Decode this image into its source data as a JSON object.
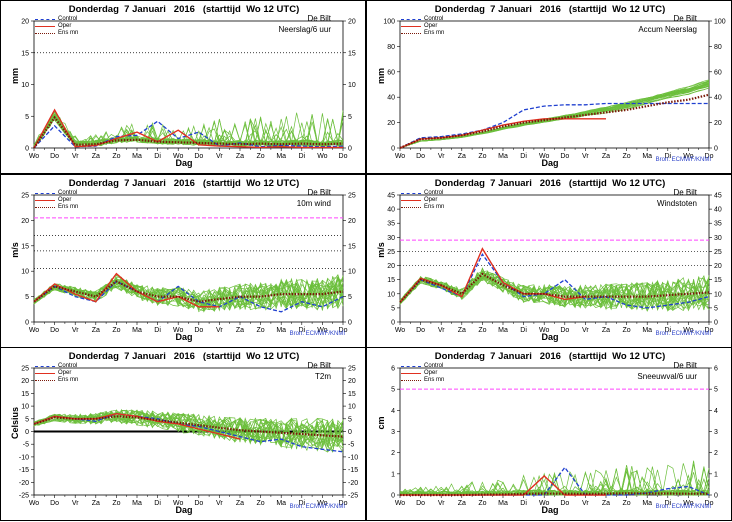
{
  "page": {
    "title": "Donderdag  7 Januari   2016   (starttijd  Wo 12 UTC)",
    "location": "De Bilt",
    "xlabel": "Dag",
    "source": "Bron:  ECMWF/KNMI",
    "days": [
      "Wo",
      "Do",
      "Vr",
      "Za",
      "Zo",
      "Ma",
      "Di",
      "Wo",
      "Do",
      "Vr",
      "Za",
      "Zo",
      "Ma",
      "Di",
      "Wo",
      "Do"
    ]
  },
  "legend": {
    "control": "Control",
    "oper": "Oper",
    "ensmn": "Ens mn"
  },
  "colors": {
    "control": "#2040d0",
    "oper": "#e03020",
    "ensmn": "#7a1a0a",
    "members": "#6cbf3c",
    "threshold": "#ff44ff",
    "zero": "#000000"
  },
  "chart_data": [
    {
      "type": "line",
      "var_label": "Neerslag/6 uur",
      "ylabel": "mm",
      "ylim": [
        0,
        20
      ],
      "yticks": [
        0,
        5,
        10,
        15,
        20
      ],
      "hlines": [
        {
          "y": 15,
          "style": "dotted"
        }
      ],
      "series": [
        {
          "name": "Control",
          "values": [
            0,
            3.5,
            0.2,
            0.3,
            1.8,
            2.0,
            4.2,
            1.5,
            2.5,
            0.3,
            0.8,
            0.2,
            0.4,
            0.3,
            0.2,
            0.3
          ]
        },
        {
          "name": "Oper",
          "values": [
            0,
            6.0,
            0.2,
            0.4,
            1.5,
            2.5,
            1.0,
            2.8,
            0.5,
            0.3,
            0.2,
            0.1,
            0.2,
            0.1,
            0.1,
            0.1
          ]
        },
        {
          "name": "Ens mn",
          "values": [
            0,
            4.8,
            0.5,
            0.6,
            1.2,
            1.3,
            1.0,
            0.9,
            0.8,
            0.7,
            0.6,
            0.7,
            0.6,
            0.7,
            0.6,
            0.7
          ]
        }
      ]
    },
    {
      "type": "line",
      "var_label": "Accum Neerslag",
      "ylabel": "mm",
      "ylim": [
        0,
        100
      ],
      "yticks": [
        0,
        20,
        40,
        60,
        80,
        100
      ],
      "hlines": [],
      "series": [
        {
          "name": "Control",
          "values": [
            0,
            8,
            9,
            11,
            14,
            20,
            30,
            33,
            34,
            34,
            35,
            35,
            35,
            35,
            35,
            35
          ]
        },
        {
          "name": "Oper",
          "values": [
            0,
            7,
            8,
            10,
            14,
            18,
            21,
            23,
            23,
            23,
            23,
            null,
            null,
            null,
            null,
            null
          ]
        },
        {
          "name": "Ens mn",
          "values": [
            0,
            7,
            8,
            10,
            13,
            17,
            20,
            22,
            24,
            26,
            28,
            30,
            33,
            36,
            38,
            42
          ]
        }
      ]
    },
    {
      "type": "line",
      "var_label": "10m wind",
      "ylabel": "m/s",
      "ylim": [
        0,
        25
      ],
      "yticks": [
        0,
        5,
        10,
        15,
        20,
        25
      ],
      "hlines": [
        {
          "y": 20.5,
          "style": "dashed-magenta"
        },
        {
          "y": 17,
          "style": "dotted"
        },
        {
          "y": 14,
          "style": "dotted"
        },
        {
          "y": 10.5,
          "style": "dotted"
        }
      ],
      "series": [
        {
          "name": "Control",
          "values": [
            4,
            7,
            5,
            4,
            8,
            6,
            4,
            7,
            4,
            3,
            5,
            3,
            2,
            4,
            3,
            5
          ]
        },
        {
          "name": "Oper",
          "values": [
            4,
            7.5,
            5.5,
            4,
            9.5,
            6,
            4,
            5,
            3,
            3,
            null,
            null,
            null,
            null,
            null,
            null
          ]
        },
        {
          "name": "Ens mn",
          "values": [
            4,
            7,
            6,
            5,
            8,
            6,
            5,
            5,
            4,
            4.5,
            5,
            5,
            5.5,
            5.5,
            5.5,
            6
          ]
        }
      ]
    },
    {
      "type": "line",
      "var_label": "Windstoten",
      "ylabel": "m/s",
      "ylim": [
        0,
        45
      ],
      "yticks": [
        0,
        5,
        10,
        15,
        20,
        25,
        30,
        35,
        40,
        45
      ],
      "hlines": [
        {
          "y": 29,
          "style": "dashed-magenta"
        },
        {
          "y": 25,
          "style": "dotted"
        },
        {
          "y": 20,
          "style": "dotted"
        }
      ],
      "series": [
        {
          "name": "Control",
          "values": [
            7,
            15,
            12,
            9,
            24,
            14,
            9,
            10,
            15,
            8,
            9,
            6,
            5,
            6,
            7,
            9
          ]
        },
        {
          "name": "Oper",
          "values": [
            7,
            15.5,
            13,
            9,
            26,
            14,
            10,
            10,
            8,
            9,
            null,
            null,
            null,
            null,
            null,
            null
          ]
        },
        {
          "name": "Ens mn",
          "values": [
            7,
            15,
            13,
            10,
            17,
            13,
            10,
            10,
            9,
            9,
            9,
            9,
            9,
            9.5,
            10,
            10.5
          ]
        }
      ]
    },
    {
      "type": "line",
      "var_label": "T2m",
      "ylabel": "Celsius",
      "ylim": [
        -25,
        25
      ],
      "yticks": [
        -25,
        -20,
        -15,
        -10,
        -5,
        0,
        5,
        10,
        15,
        20,
        25
      ],
      "hlines": [
        {
          "y": 0,
          "style": "solid-thick"
        }
      ],
      "series": [
        {
          "name": "Control",
          "values": [
            3,
            6,
            5,
            4,
            7,
            6,
            5,
            3,
            2,
            0,
            -2,
            -4,
            -3,
            -6,
            -7,
            -8
          ]
        },
        {
          "name": "Oper",
          "values": [
            3,
            6,
            5,
            5,
            7,
            6,
            4,
            3,
            1,
            -1,
            -3,
            null,
            null,
            null,
            null,
            null
          ]
        },
        {
          "name": "Ens mn",
          "values": [
            3,
            5.5,
            5,
            5,
            6,
            5.5,
            4.5,
            3.5,
            2.5,
            1.5,
            0.5,
            0,
            -0.5,
            -1,
            -1.5,
            -2
          ]
        }
      ]
    },
    {
      "type": "line",
      "var_label": "Sneeuwval/6 uur",
      "ylabel": "cm",
      "ylim": [
        0,
        6
      ],
      "yticks": [
        0,
        1,
        2,
        3,
        4,
        5,
        6
      ],
      "hlines": [
        {
          "y": 5,
          "style": "dashed-magenta"
        }
      ],
      "series": [
        {
          "name": "Control",
          "values": [
            0,
            0,
            0,
            0,
            0,
            0,
            0,
            0,
            1.3,
            0,
            0,
            0,
            0.1,
            0.3,
            0.4,
            0
          ]
        },
        {
          "name": "Oper",
          "values": [
            0,
            0,
            0,
            0,
            0,
            0,
            0,
            0.9,
            0,
            0,
            0,
            null,
            null,
            null,
            null,
            null
          ]
        },
        {
          "name": "Ens mn",
          "values": [
            0,
            0,
            0,
            0,
            0.02,
            0.03,
            0.05,
            0.07,
            0.06,
            0.05,
            0.06,
            0.08,
            0.07,
            0.07,
            0.06,
            0.06
          ]
        }
      ]
    }
  ]
}
